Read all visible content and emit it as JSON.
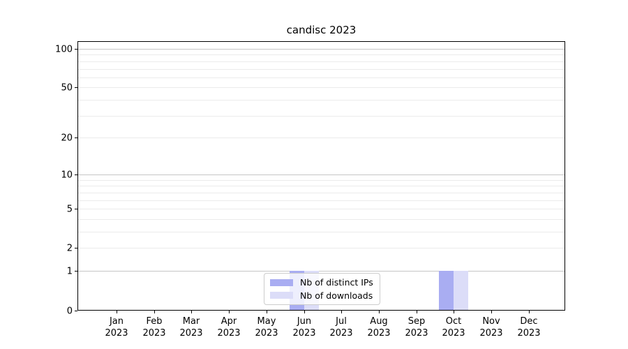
{
  "chart_data": {
    "type": "bar",
    "title": "candisc 2023",
    "x": [
      "Jan 2023",
      "Feb 2023",
      "Mar 2023",
      "Apr 2023",
      "May 2023",
      "Jun 2023",
      "Jul 2023",
      "Aug 2023",
      "Sep 2023",
      "Oct 2023",
      "Nov 2023",
      "Dec 2023"
    ],
    "x_tick_line1": [
      "Jan",
      "Feb",
      "Mar",
      "Apr",
      "May",
      "Jun",
      "Jul",
      "Aug",
      "Sep",
      "Oct",
      "Nov",
      "Dec"
    ],
    "x_tick_line2": "2023",
    "series": [
      {
        "name": "Nb of distinct IPs",
        "color": "#a9adf2",
        "values": [
          0,
          0,
          0,
          0,
          0,
          1,
          0,
          0,
          0,
          1,
          0,
          0
        ]
      },
      {
        "name": "Nb of downloads",
        "color": "#dcddf8",
        "values": [
          0,
          0,
          0,
          0,
          0,
          1,
          0,
          0,
          0,
          1,
          0,
          0
        ]
      }
    ],
    "yscale": "log1p",
    "ylim": [
      0,
      115
    ],
    "ytick_labels": [
      0,
      1,
      2,
      5,
      10,
      20,
      50,
      100
    ],
    "ygrid_major": [
      1,
      10,
      100
    ],
    "ygrid_minor": [
      2,
      3,
      4,
      5,
      6,
      7,
      8,
      9,
      20,
      30,
      40,
      50,
      60,
      70,
      80,
      90
    ],
    "legend_position": "lower center",
    "colors": {
      "grid_major": "#c6c6c6",
      "grid_minor": "#ebebeb",
      "spine": "#000000",
      "background": "#ffffff"
    }
  }
}
